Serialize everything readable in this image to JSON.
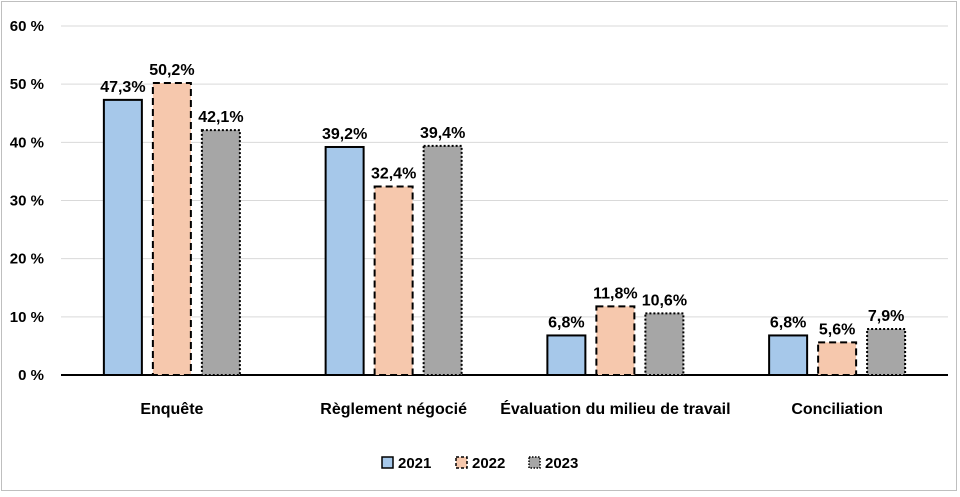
{
  "chart_data": {
    "type": "bar",
    "title": "",
    "xlabel": "",
    "ylabel": "",
    "categories": [
      "Enquête",
      "Règlement négocié",
      "Évaluation du milieu de travail",
      "Conciliation"
    ],
    "series": [
      {
        "name": "2021",
        "values": [
          47.3,
          39.2,
          6.8,
          6.8
        ],
        "labels": [
          "47,3%",
          "39,2%",
          "6,8%",
          "6,8%"
        ],
        "color": "#a6c8ea",
        "border": "solid"
      },
      {
        "name": "2022",
        "values": [
          50.2,
          32.4,
          11.8,
          5.6
        ],
        "labels": [
          "50,2%",
          "32,4%",
          "11,8%",
          "5,6%"
        ],
        "color": "#f6c8ad",
        "border": "dashed"
      },
      {
        "name": "2023",
        "values": [
          42.1,
          39.4,
          10.6,
          7.9
        ],
        "labels": [
          "42,1%",
          "39,4%",
          "10,6%",
          "7,9%"
        ],
        "color": "#a6a6a6",
        "border": "dotted"
      }
    ],
    "ylim": [
      0,
      60
    ],
    "yticks": [
      0,
      10,
      20,
      30,
      40,
      50,
      60
    ],
    "ytick_labels": [
      "0 %",
      "10 %",
      "20 %",
      "30 %",
      "40 %",
      "50 %",
      "60 %"
    ],
    "grid": true,
    "legend_position": "bottom-center"
  }
}
